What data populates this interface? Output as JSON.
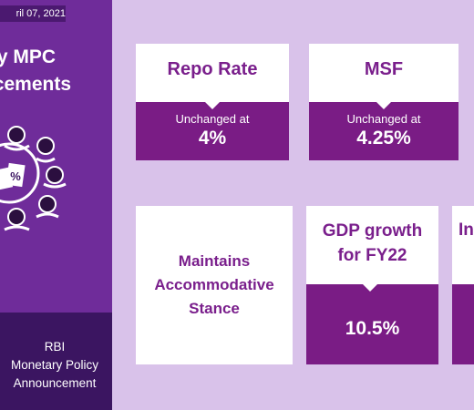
{
  "sidebar": {
    "date": "ril 07, 2021",
    "title_line1": "y MPC",
    "title_line2": "ncements",
    "footer_line1": "RBI",
    "footer_line2": "Monetary Policy",
    "footer_line3": "Announcement",
    "percent_symbol": "%"
  },
  "cards": {
    "repo": {
      "title": "Repo Rate",
      "caption": "Unchanged at",
      "value": "4%"
    },
    "msf": {
      "title": "MSF",
      "caption": "Unchanged at",
      "value": "4.25%"
    },
    "stance": {
      "line1": "Maintains",
      "line2": "Accommodative",
      "line3": "Stance"
    },
    "gdp": {
      "title_line1": "GDP growth",
      "title_line2": "for FY22",
      "value": "10.5%"
    },
    "partial": {
      "title": "In"
    }
  },
  "colors": {
    "background": "#d9c2ea",
    "sidebar": "#6f2c9a",
    "sidebar_footer": "#3b1561",
    "accent": "#7a1c85",
    "title_text": "#7a1f8c"
  }
}
